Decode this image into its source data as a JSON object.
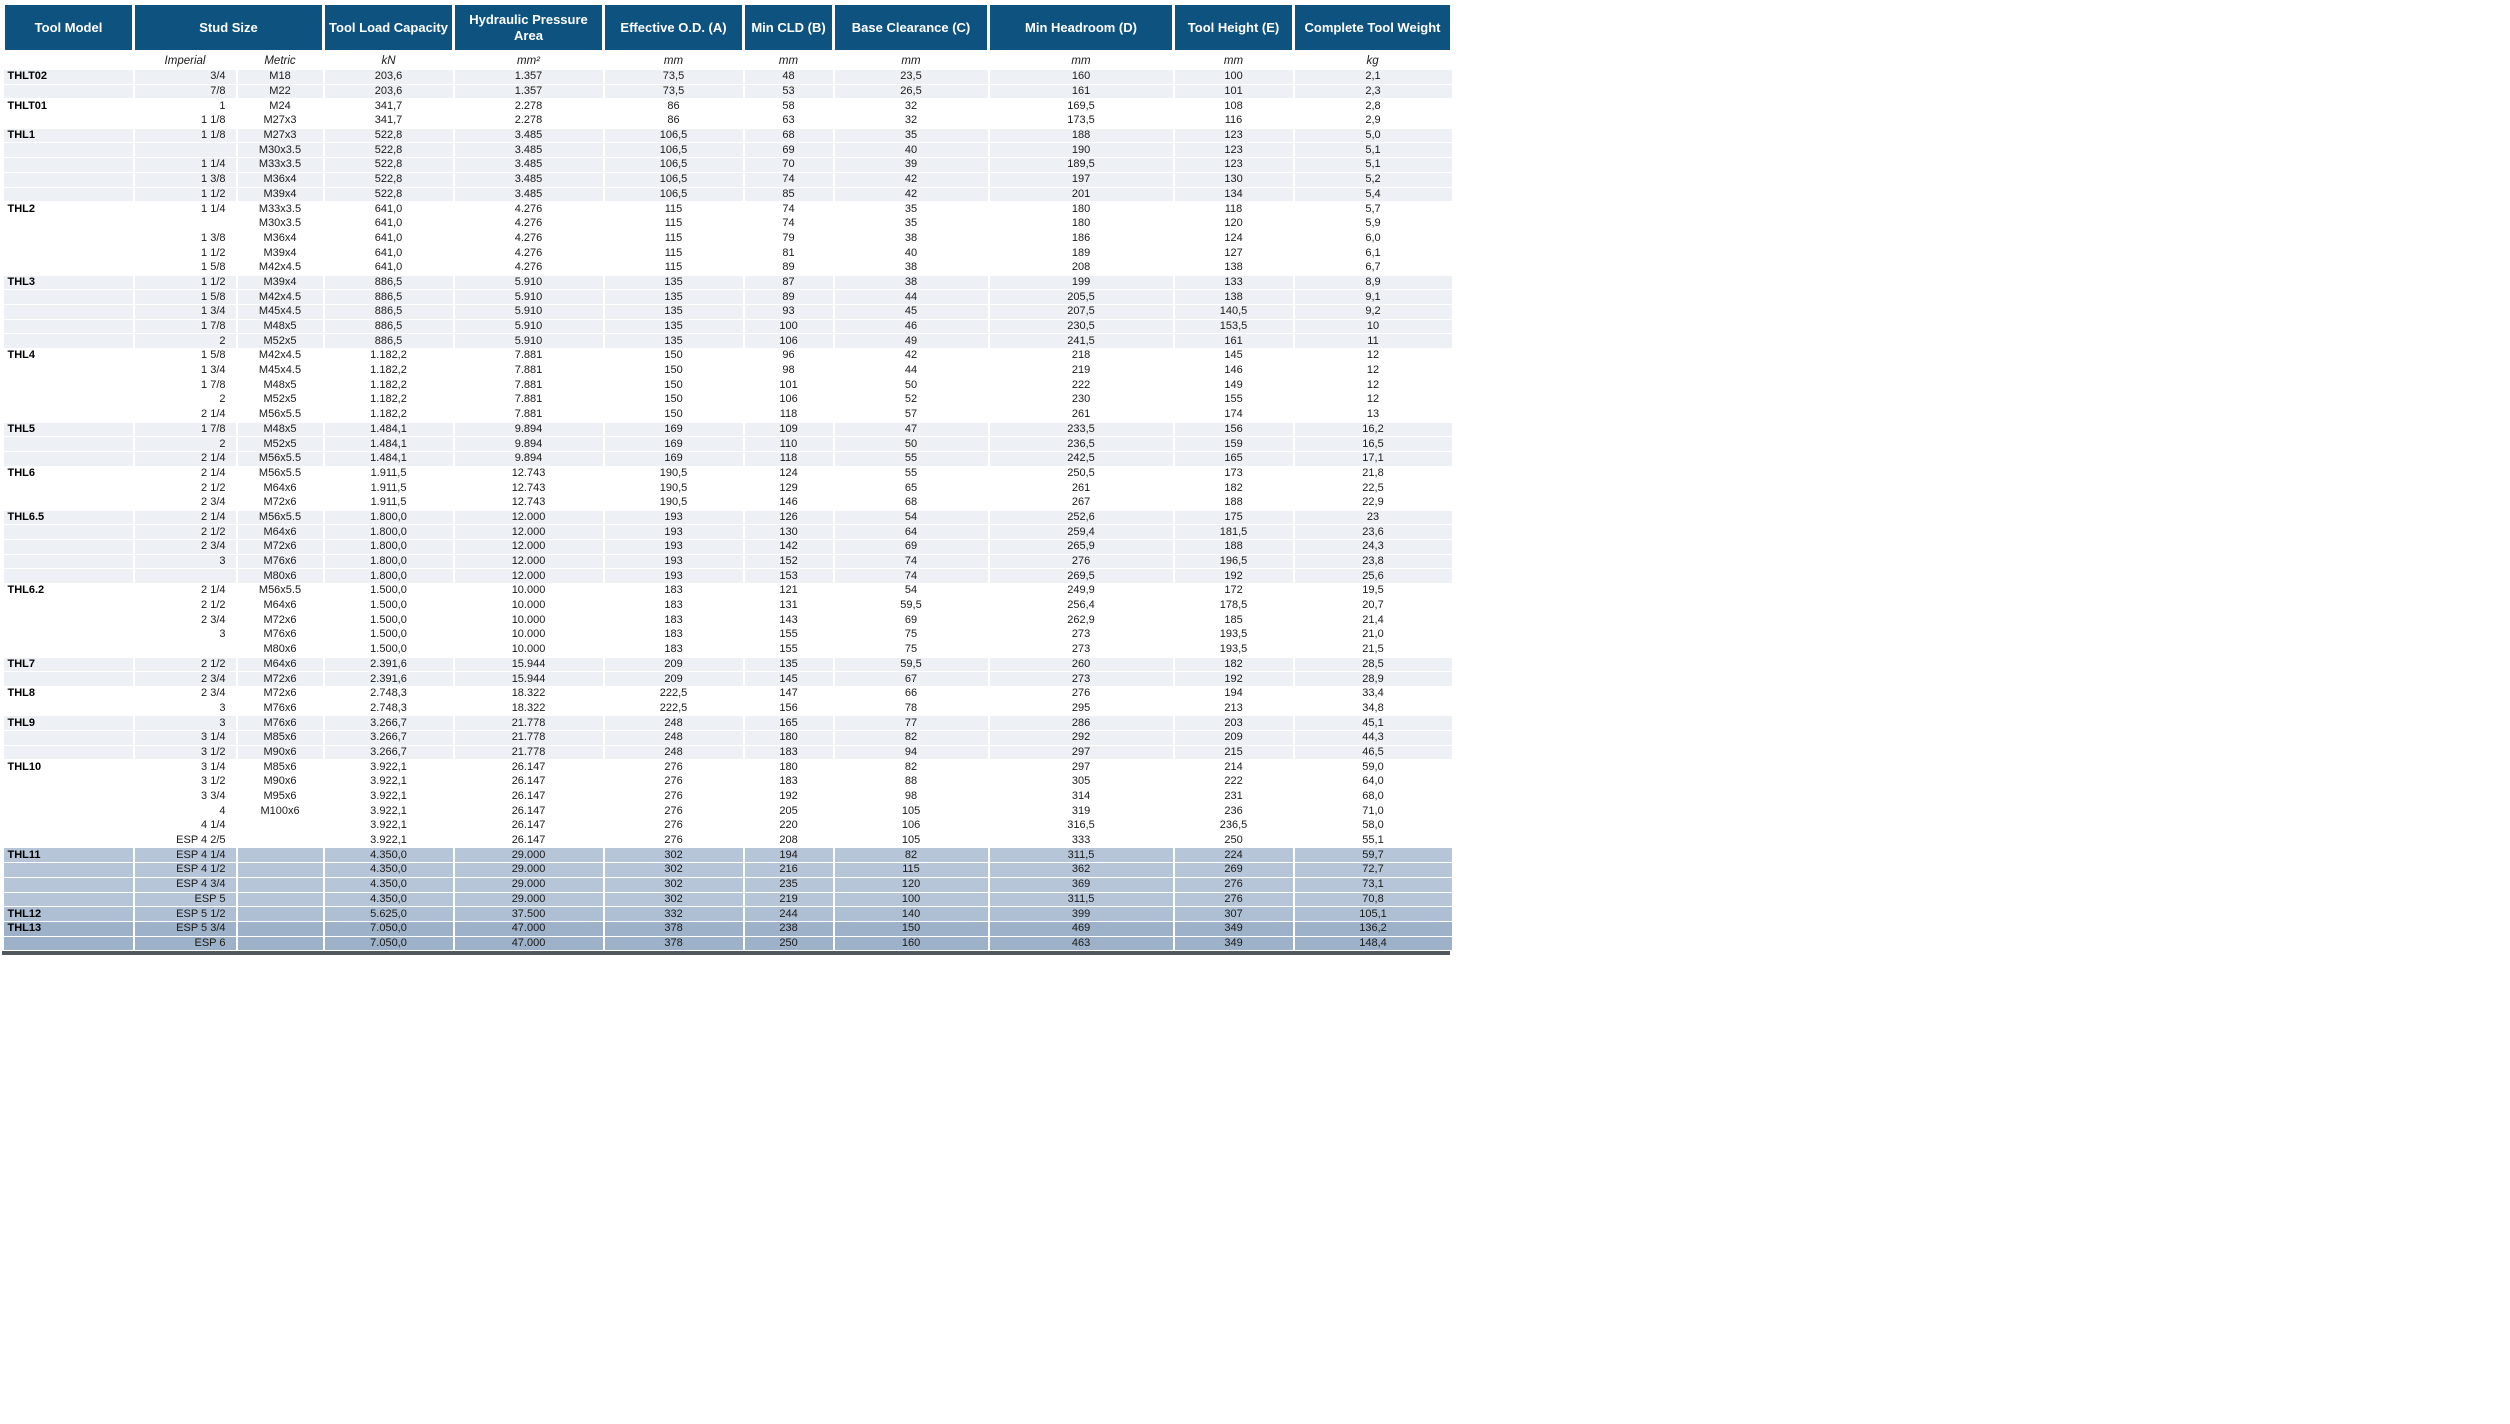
{
  "header": {
    "tool_model": "Tool Model",
    "stud_size": "Stud Size",
    "tool_load_capacity": "Tool Load Capacity",
    "hydraulic_pressure_area": "Hydraulic Pressure Area",
    "effective_od": "Effective O.D. (A)",
    "min_cld": "Min CLD (B)",
    "base_clearance": "Base Clearance (C)",
    "min_headroom": "Min Headroom (D)",
    "tool_height": "Tool Height (E)",
    "complete_tool_weight": "Complete Tool Weight"
  },
  "units": {
    "imperial": "Imperial",
    "metric": "Metric",
    "kn": "kN",
    "mm2": "mm²",
    "mm_a": "mm",
    "mm_b": "mm",
    "mm_c": "mm",
    "mm_d": "mm",
    "mm_e": "mm",
    "kg": "kg"
  },
  "colors": {
    "header_blue": "#0e5380",
    "row_gray": "#edf0f4",
    "row_white": "#ffffff",
    "row_blue_light": "#b6c5d8",
    "row_blue_mid": "#aebfd3",
    "row_blue_dark": "#9db1c8",
    "bottom_bar": "#515860"
  },
  "rows": [
    {
      "shade": "g",
      "cells": [
        "THLT02",
        "3/4",
        "M18",
        "203,6",
        "1.357",
        "73,5",
        "48",
        "23,5",
        "160",
        "100",
        "2,1"
      ]
    },
    {
      "shade": "g",
      "cells": [
        "",
        "7/8",
        "M22",
        "203,6",
        "1.357",
        "73,5",
        "53",
        "26,5",
        "161",
        "101",
        "2,3"
      ]
    },
    {
      "shade": "w",
      "cells": [
        "THLT01",
        "1",
        "M24",
        "341,7",
        "2.278",
        "86",
        "58",
        "32",
        "169,5",
        "108",
        "2,8"
      ]
    },
    {
      "shade": "w",
      "cells": [
        "",
        "1 1/8",
        "M27x3",
        "341,7",
        "2.278",
        "86",
        "63",
        "32",
        "173,5",
        "116",
        "2,9"
      ]
    },
    {
      "shade": "g",
      "cells": [
        "THL1",
        "1 1/8",
        "M27x3",
        "522,8",
        "3.485",
        "106,5",
        "68",
        "35",
        "188",
        "123",
        "5,0"
      ]
    },
    {
      "shade": "g",
      "cells": [
        "",
        "",
        "M30x3.5",
        "522,8",
        "3.485",
        "106,5",
        "69",
        "40",
        "190",
        "123",
        "5,1"
      ]
    },
    {
      "shade": "g",
      "cells": [
        "",
        "1 1/4",
        "M33x3.5",
        "522,8",
        "3.485",
        "106,5",
        "70",
        "39",
        "189,5",
        "123",
        "5,1"
      ]
    },
    {
      "shade": "g",
      "cells": [
        "",
        "1 3/8",
        "M36x4",
        "522,8",
        "3.485",
        "106,5",
        "74",
        "42",
        "197",
        "130",
        "5,2"
      ]
    },
    {
      "shade": "g",
      "cells": [
        "",
        "1 1/2",
        "M39x4",
        "522,8",
        "3.485",
        "106,5",
        "85",
        "42",
        "201",
        "134",
        "5,4"
      ]
    },
    {
      "shade": "w",
      "cells": [
        "THL2",
        "1 1/4",
        "M33x3.5",
        "641,0",
        "4.276",
        "115",
        "74",
        "35",
        "180",
        "118",
        "5,7"
      ]
    },
    {
      "shade": "w",
      "cells": [
        "",
        "",
        "M30x3.5",
        "641,0",
        "4.276",
        "115",
        "74",
        "35",
        "180",
        "120",
        "5,9"
      ]
    },
    {
      "shade": "w",
      "cells": [
        "",
        "1 3/8",
        "M36x4",
        "641,0",
        "4.276",
        "115",
        "79",
        "38",
        "186",
        "124",
        "6,0"
      ]
    },
    {
      "shade": "w",
      "cells": [
        "",
        "1 1/2",
        "M39x4",
        "641,0",
        "4.276",
        "115",
        "81",
        "40",
        "189",
        "127",
        "6,1"
      ]
    },
    {
      "shade": "w",
      "cells": [
        "",
        "1 5/8",
        "M42x4.5",
        "641,0",
        "4.276",
        "115",
        "89",
        "38",
        "208",
        "138",
        "6,7"
      ]
    },
    {
      "shade": "g",
      "cells": [
        "THL3",
        "1 1/2",
        "M39x4",
        "886,5",
        "5.910",
        "135",
        "87",
        "38",
        "199",
        "133",
        "8,9"
      ]
    },
    {
      "shade": "g",
      "cells": [
        "",
        "1 5/8",
        "M42x4.5",
        "886,5",
        "5.910",
        "135",
        "89",
        "44",
        "205,5",
        "138",
        "9,1"
      ]
    },
    {
      "shade": "g",
      "cells": [
        "",
        "1 3/4",
        "M45x4.5",
        "886,5",
        "5.910",
        "135",
        "93",
        "45",
        "207,5",
        "140,5",
        "9,2"
      ]
    },
    {
      "shade": "g",
      "cells": [
        "",
        "1 7/8",
        "M48x5",
        "886,5",
        "5.910",
        "135",
        "100",
        "46",
        "230,5",
        "153,5",
        "10"
      ]
    },
    {
      "shade": "g",
      "cells": [
        "",
        "2",
        "M52x5",
        "886,5",
        "5.910",
        "135",
        "106",
        "49",
        "241,5",
        "161",
        "11"
      ]
    },
    {
      "shade": "w",
      "cells": [
        "THL4",
        "1 5/8",
        "M42x4.5",
        "1.182,2",
        "7.881",
        "150",
        "96",
        "42",
        "218",
        "145",
        "12"
      ]
    },
    {
      "shade": "w",
      "cells": [
        "",
        "1 3/4",
        "M45x4.5",
        "1.182,2",
        "7.881",
        "150",
        "98",
        "44",
        "219",
        "146",
        "12"
      ]
    },
    {
      "shade": "w",
      "cells": [
        "",
        "1 7/8",
        "M48x5",
        "1.182,2",
        "7.881",
        "150",
        "101",
        "50",
        "222",
        "149",
        "12"
      ]
    },
    {
      "shade": "w",
      "cells": [
        "",
        "2",
        "M52x5",
        "1.182,2",
        "7.881",
        "150",
        "106",
        "52",
        "230",
        "155",
        "12"
      ]
    },
    {
      "shade": "w",
      "cells": [
        "",
        "2 1/4",
        "M56x5.5",
        "1.182,2",
        "7.881",
        "150",
        "118",
        "57",
        "261",
        "174",
        "13"
      ]
    },
    {
      "shade": "g",
      "cells": [
        "THL5",
        "1 7/8",
        "M48x5",
        "1.484,1",
        "9.894",
        "169",
        "109",
        "47",
        "233,5",
        "156",
        "16,2"
      ]
    },
    {
      "shade": "g",
      "cells": [
        "",
        "2",
        "M52x5",
        "1.484,1",
        "9.894",
        "169",
        "110",
        "50",
        "236,5",
        "159",
        "16,5"
      ]
    },
    {
      "shade": "g",
      "cells": [
        "",
        "2 1/4",
        "M56x5.5",
        "1.484,1",
        "9.894",
        "169",
        "118",
        "55",
        "242,5",
        "165",
        "17,1"
      ]
    },
    {
      "shade": "w",
      "cells": [
        "THL6",
        "2 1/4",
        "M56x5.5",
        "1.911,5",
        "12.743",
        "190,5",
        "124",
        "55",
        "250,5",
        "173",
        "21,8"
      ]
    },
    {
      "shade": "w",
      "cells": [
        "",
        "2 1/2",
        "M64x6",
        "1.911,5",
        "12.743",
        "190,5",
        "129",
        "65",
        "261",
        "182",
        "22,5"
      ]
    },
    {
      "shade": "w",
      "cells": [
        "",
        "2 3/4",
        "M72x6",
        "1.911,5",
        "12.743",
        "190,5",
        "146",
        "68",
        "267",
        "188",
        "22,9"
      ]
    },
    {
      "shade": "g",
      "cells": [
        "THL6.5",
        "2 1/4",
        "M56x5.5",
        "1.800,0",
        "12.000",
        "193",
        "126",
        "54",
        "252,6",
        "175",
        "23"
      ]
    },
    {
      "shade": "g",
      "cells": [
        "",
        "2 1/2",
        "M64x6",
        "1.800,0",
        "12.000",
        "193",
        "130",
        "64",
        "259,4",
        "181,5",
        "23,6"
      ]
    },
    {
      "shade": "g",
      "cells": [
        "",
        "2 3/4",
        "M72x6",
        "1.800,0",
        "12.000",
        "193",
        "142",
        "69",
        "265,9",
        "188",
        "24,3"
      ]
    },
    {
      "shade": "g",
      "cells": [
        "",
        "3",
        "M76x6",
        "1.800,0",
        "12.000",
        "193",
        "152",
        "74",
        "276",
        "196,5",
        "23,8"
      ]
    },
    {
      "shade": "g",
      "cells": [
        "",
        "",
        "M80x6",
        "1.800,0",
        "12.000",
        "193",
        "153",
        "74",
        "269,5",
        "192",
        "25,6"
      ]
    },
    {
      "shade": "w",
      "cells": [
        "THL6.2",
        "2 1/4",
        "M56x5.5",
        "1.500,0",
        "10.000",
        "183",
        "121",
        "54",
        "249,9",
        "172",
        "19,5"
      ]
    },
    {
      "shade": "w",
      "cells": [
        "",
        "2 1/2",
        "M64x6",
        "1.500,0",
        "10.000",
        "183",
        "131",
        "59,5",
        "256,4",
        "178,5",
        "20,7"
      ]
    },
    {
      "shade": "w",
      "cells": [
        "",
        "2 3/4",
        "M72x6",
        "1.500,0",
        "10.000",
        "183",
        "143",
        "69",
        "262,9",
        "185",
        "21,4"
      ]
    },
    {
      "shade": "w",
      "cells": [
        "",
        "3",
        "M76x6",
        "1.500,0",
        "10.000",
        "183",
        "155",
        "75",
        "273",
        "193,5",
        "21,0"
      ]
    },
    {
      "shade": "w",
      "cells": [
        "",
        "",
        "M80x6",
        "1.500,0",
        "10.000",
        "183",
        "155",
        "75",
        "273",
        "193,5",
        "21,5"
      ]
    },
    {
      "shade": "g",
      "cells": [
        "THL7",
        "2 1/2",
        "M64x6",
        "2.391,6",
        "15.944",
        "209",
        "135",
        "59,5",
        "260",
        "182",
        "28,5"
      ]
    },
    {
      "shade": "g",
      "cells": [
        "",
        "2 3/4",
        "M72x6",
        "2.391,6",
        "15.944",
        "209",
        "145",
        "67",
        "273",
        "192",
        "28,9"
      ]
    },
    {
      "shade": "w",
      "cells": [
        "THL8",
        "2 3/4",
        "M72x6",
        "2.748,3",
        "18.322",
        "222,5",
        "147",
        "66",
        "276",
        "194",
        "33,4"
      ]
    },
    {
      "shade": "w",
      "cells": [
        "",
        "3",
        "M76x6",
        "2.748,3",
        "18.322",
        "222,5",
        "156",
        "78",
        "295",
        "213",
        "34,8"
      ]
    },
    {
      "shade": "g",
      "cells": [
        "THL9",
        "3",
        "M76x6",
        "3.266,7",
        "21.778",
        "248",
        "165",
        "77",
        "286",
        "203",
        "45,1"
      ]
    },
    {
      "shade": "g",
      "cells": [
        "",
        "3 1/4",
        "M85x6",
        "3.266,7",
        "21.778",
        "248",
        "180",
        "82",
        "292",
        "209",
        "44,3"
      ]
    },
    {
      "shade": "g",
      "cells": [
        "",
        "3 1/2",
        "M90x6",
        "3.266,7",
        "21.778",
        "248",
        "183",
        "94",
        "297",
        "215",
        "46,5"
      ]
    },
    {
      "shade": "w",
      "cells": [
        "THL10",
        "3 1/4",
        "M85x6",
        "3.922,1",
        "26.147",
        "276",
        "180",
        "82",
        "297",
        "214",
        "59,0"
      ]
    },
    {
      "shade": "w",
      "cells": [
        "",
        "3 1/2",
        "M90x6",
        "3.922,1",
        "26.147",
        "276",
        "183",
        "88",
        "305",
        "222",
        "64,0"
      ]
    },
    {
      "shade": "w",
      "cells": [
        "",
        "3 3/4",
        "M95x6",
        "3.922,1",
        "26.147",
        "276",
        "192",
        "98",
        "314",
        "231",
        "68,0"
      ]
    },
    {
      "shade": "w",
      "cells": [
        "",
        "4",
        "M100x6",
        "3.922,1",
        "26.147",
        "276",
        "205",
        "105",
        "319",
        "236",
        "71,0"
      ]
    },
    {
      "shade": "w",
      "cells": [
        "",
        "4 1/4",
        "",
        "3.922,1",
        "26.147",
        "276",
        "220",
        "106",
        "316,5",
        "236,5",
        "58,0"
      ]
    },
    {
      "shade": "w",
      "cells": [
        "",
        "ESP 4 2/5",
        "",
        "3.922,1",
        "26.147",
        "276",
        "208",
        "105",
        "333",
        "250",
        "55,1"
      ]
    },
    {
      "shade": "b1",
      "cells": [
        "THL11",
        "ESP 4 1/4",
        "",
        "4.350,0",
        "29.000",
        "302",
        "194",
        "82",
        "311,5",
        "224",
        "59,7"
      ]
    },
    {
      "shade": "b1",
      "cells": [
        "",
        "ESP 4 1/2",
        "",
        "4.350,0",
        "29.000",
        "302",
        "216",
        "115",
        "362",
        "269",
        "72,7"
      ]
    },
    {
      "shade": "b1",
      "cells": [
        "",
        "ESP 4 3/4",
        "",
        "4.350,0",
        "29.000",
        "302",
        "235",
        "120",
        "369",
        "276",
        "73,1"
      ]
    },
    {
      "shade": "b1",
      "cells": [
        "",
        "ESP 5",
        "",
        "4.350,0",
        "29.000",
        "302",
        "219",
        "100",
        "311,5",
        "276",
        "70,8"
      ]
    },
    {
      "shade": "b2",
      "cells": [
        "THL12",
        "ESP 5 1/2",
        "",
        "5.625,0",
        "37.500",
        "332",
        "244",
        "140",
        "399",
        "307",
        "105,1"
      ]
    },
    {
      "shade": "b3",
      "cells": [
        "THL13",
        "ESP 5 3/4",
        "",
        "7.050,0",
        "47.000",
        "378",
        "238",
        "150",
        "469",
        "349",
        "136,2"
      ]
    },
    {
      "shade": "b3",
      "cells": [
        "",
        "ESP 6",
        "",
        "7.050,0",
        "47.000",
        "378",
        "250",
        "160",
        "463",
        "349",
        "148,4"
      ]
    }
  ]
}
